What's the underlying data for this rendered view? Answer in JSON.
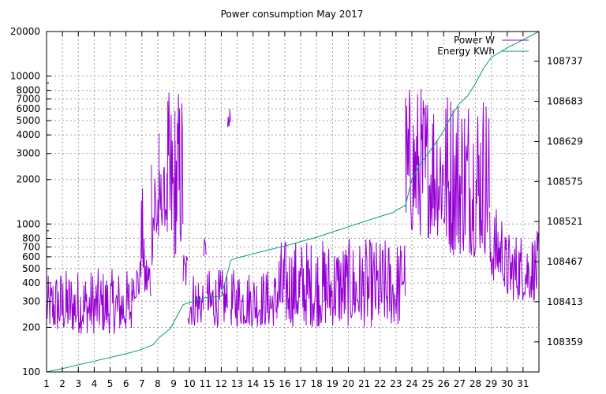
{
  "chart_data": {
    "type": "line",
    "title": "Power consumption May 2017",
    "xlabel": "",
    "ylabel": "",
    "x_ticks": [
      "1",
      "2",
      "3",
      "4",
      "5",
      "6",
      "7",
      "8",
      "9",
      "10",
      "11",
      "12",
      "13",
      "14",
      "15",
      "16",
      "17",
      "18",
      "19",
      "20",
      "21",
      "22",
      "23",
      "24",
      "25",
      "26",
      "27",
      "28",
      "29",
      "30",
      "31"
    ],
    "xlim": [
      1,
      32
    ],
    "y_left": {
      "scale": "log",
      "lim": [
        100,
        20000
      ],
      "ticks": [
        "100",
        "200",
        "300",
        "400",
        "500",
        "600",
        "700",
        "800",
        "1000",
        "2000",
        "3000",
        "4000",
        "5000",
        "6000",
        "7000",
        "8000",
        "10000",
        "20000"
      ]
    },
    "y_right": {
      "lim": [
        108318.5,
        108777
      ],
      "ticks": [
        "108359",
        "108413",
        "108467",
        "108521",
        "108575",
        "108629",
        "108683",
        "108737"
      ]
    },
    "grid": true,
    "legend_position": "top-right",
    "series": [
      {
        "name": "Power W",
        "axis": "left",
        "color": "#9400d3",
        "segments": [
          {
            "x": [
              1.0,
              1.4
            ],
            "range": [
              190,
              450
            ]
          },
          {
            "x": [
              1.4,
              6.4
            ],
            "range": [
              180,
              500
            ]
          },
          {
            "x": [
              6.4,
              6.9
            ],
            "range": [
              300,
              600
            ]
          },
          {
            "x": [
              6.9,
              7.15
            ],
            "range": [
              400,
              1800
            ]
          },
          {
            "x": [
              7.15,
              7.6
            ],
            "range": [
              300,
              700
            ]
          },
          {
            "x": [
              7.6,
              8.1
            ],
            "range": [
              500,
              5000
            ]
          },
          {
            "x": [
              8.1,
              8.6
            ],
            "range": [
              950,
              2500
            ]
          },
          {
            "x": [
              8.6,
              9.1
            ],
            "range": [
              500,
              8000
            ]
          },
          {
            "x": [
              9.1,
              9.6
            ],
            "range": [
              600,
              9000
            ]
          },
          {
            "x": [
              9.6,
              9.9
            ],
            "range": [
              350,
              700
            ]
          },
          {
            "x": [
              9.9,
              10.9
            ],
            "range": [
              200,
              500
            ]
          },
          {
            "x": [
              10.9,
              11.1
            ],
            "range": [
              600,
              800
            ]
          },
          {
            "x": [
              11.1,
              12.4
            ],
            "range": [
              200,
              500
            ]
          },
          {
            "x": [
              12.4,
              12.6
            ],
            "range": [
              4500,
              6000
            ]
          },
          {
            "x": [
              12.6,
              15.5
            ],
            "range": [
              200,
              500
            ]
          },
          {
            "x": [
              15.5,
              23.3
            ],
            "range": [
              200,
              800
            ]
          },
          {
            "x": [
              23.3,
              23.6
            ],
            "range": [
              300,
              900
            ]
          },
          {
            "x": [
              23.6,
              26.0
            ],
            "range": [
              800,
              9000
            ]
          },
          {
            "x": [
              26.0,
              28.9
            ],
            "range": [
              600,
              9000
            ]
          },
          {
            "x": [
              28.9,
              29.8
            ],
            "range": [
              400,
              1300
            ]
          },
          {
            "x": [
              29.8,
              32.0
            ],
            "range": [
              300,
              900
            ]
          }
        ]
      },
      {
        "name": "Energy KWh",
        "axis": "right",
        "color": "#009e73",
        "x": [
          1.0,
          2.0,
          3.0,
          4.0,
          5.0,
          6.0,
          6.8,
          7.7,
          8.1,
          8.8,
          9.6,
          10.0,
          11.0,
          12.0,
          12.6,
          13.0,
          14.0,
          15.0,
          16.0,
          17.0,
          18.0,
          19.0,
          20.0,
          21.0,
          22.0,
          22.8,
          23.0,
          23.6,
          24.0,
          24.5,
          25.0,
          25.5,
          26.0,
          26.5,
          27.0,
          27.5,
          28.0,
          28.5,
          29.0,
          30.0,
          31.0,
          32.0
        ],
        "values": [
          108318.5,
          108323.0,
          108328.0,
          108333.0,
          108338.0,
          108343.0,
          108347.5,
          108355.0,
          108365.0,
          108377.0,
          108409.0,
          108412.0,
          108418.5,
          108420.5,
          108469.0,
          108472.0,
          108477.5,
          108483.0,
          108488.0,
          108494.0,
          108500.0,
          108507.0,
          108514.0,
          108521.0,
          108528.0,
          108533.0,
          108536.0,
          108543.0,
          108578.0,
          108598.0,
          108612.0,
          108627.0,
          108643.0,
          108664.0,
          108680.0,
          108690.0,
          108707.0,
          108727.0,
          108742.0,
          108755.0,
          108766.0,
          108777.0
        ]
      }
    ]
  }
}
